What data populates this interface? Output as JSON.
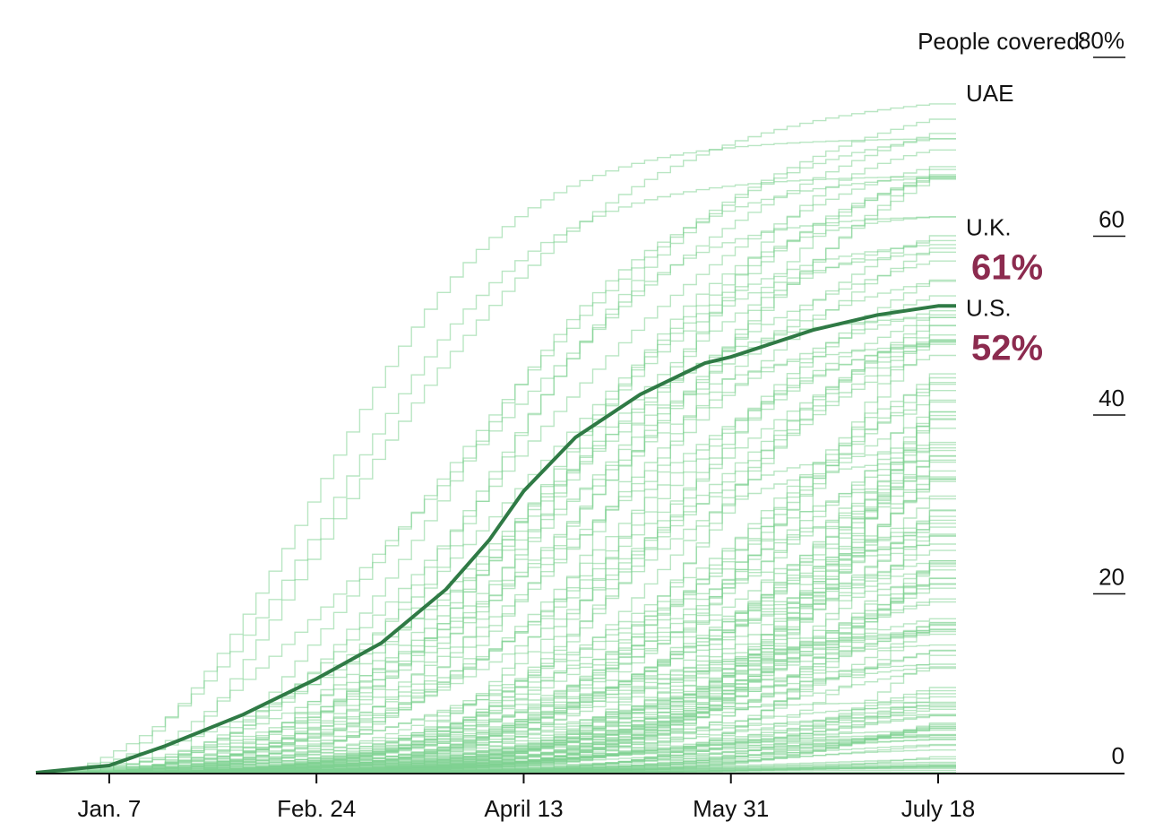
{
  "chart_data": {
    "type": "line",
    "title": "",
    "y_axis_title": "People covered:",
    "ylim": [
      0,
      80
    ],
    "y_ticks": [
      {
        "value": 80,
        "label": "80%"
      },
      {
        "value": 60,
        "label": "60"
      },
      {
        "value": 40,
        "label": "40"
      },
      {
        "value": 20,
        "label": "20"
      },
      {
        "value": 0,
        "label": "0"
      }
    ],
    "x_ticks": [
      {
        "day": 7,
        "label": "Jan. 7"
      },
      {
        "day": 55,
        "label": "Feb. 24"
      },
      {
        "day": 103,
        "label": "April 13"
      },
      {
        "day": 151,
        "label": "May 31"
      },
      {
        "day": 199,
        "label": "July 18"
      }
    ],
    "x_range_days": [
      -10,
      199
    ],
    "grid": false,
    "colors": {
      "background_line": "#7fd191",
      "highlight_line": "#2f7a45",
      "highlight_text": "#8c2b4f",
      "axis": "#111111"
    },
    "highlight_series": {
      "name": "U.S.",
      "final_percent_label": "52%",
      "points": [
        {
          "day": -10,
          "y": 0
        },
        {
          "day": 7,
          "y": 0.8
        },
        {
          "day": 20,
          "y": 3
        },
        {
          "day": 38,
          "y": 6.5
        },
        {
          "day": 55,
          "y": 10.5
        },
        {
          "day": 70,
          "y": 14.5
        },
        {
          "day": 85,
          "y": 20.5
        },
        {
          "day": 95,
          "y": 26
        },
        {
          "day": 103,
          "y": 31.5
        },
        {
          "day": 115,
          "y": 37.5
        },
        {
          "day": 130,
          "y": 42.3
        },
        {
          "day": 145,
          "y": 45.8
        },
        {
          "day": 151,
          "y": 46.5
        },
        {
          "day": 170,
          "y": 49.5
        },
        {
          "day": 185,
          "y": 51.2
        },
        {
          "day": 199,
          "y": 52.2
        }
      ]
    },
    "annotated_series": [
      {
        "name": "UAE",
        "final_y": 76
      },
      {
        "name": "U.K.",
        "final_y": 61,
        "final_percent_label": "61%"
      },
      {
        "name": "U.S.",
        "final_y": 52,
        "final_percent_label": "52%"
      }
    ]
  }
}
